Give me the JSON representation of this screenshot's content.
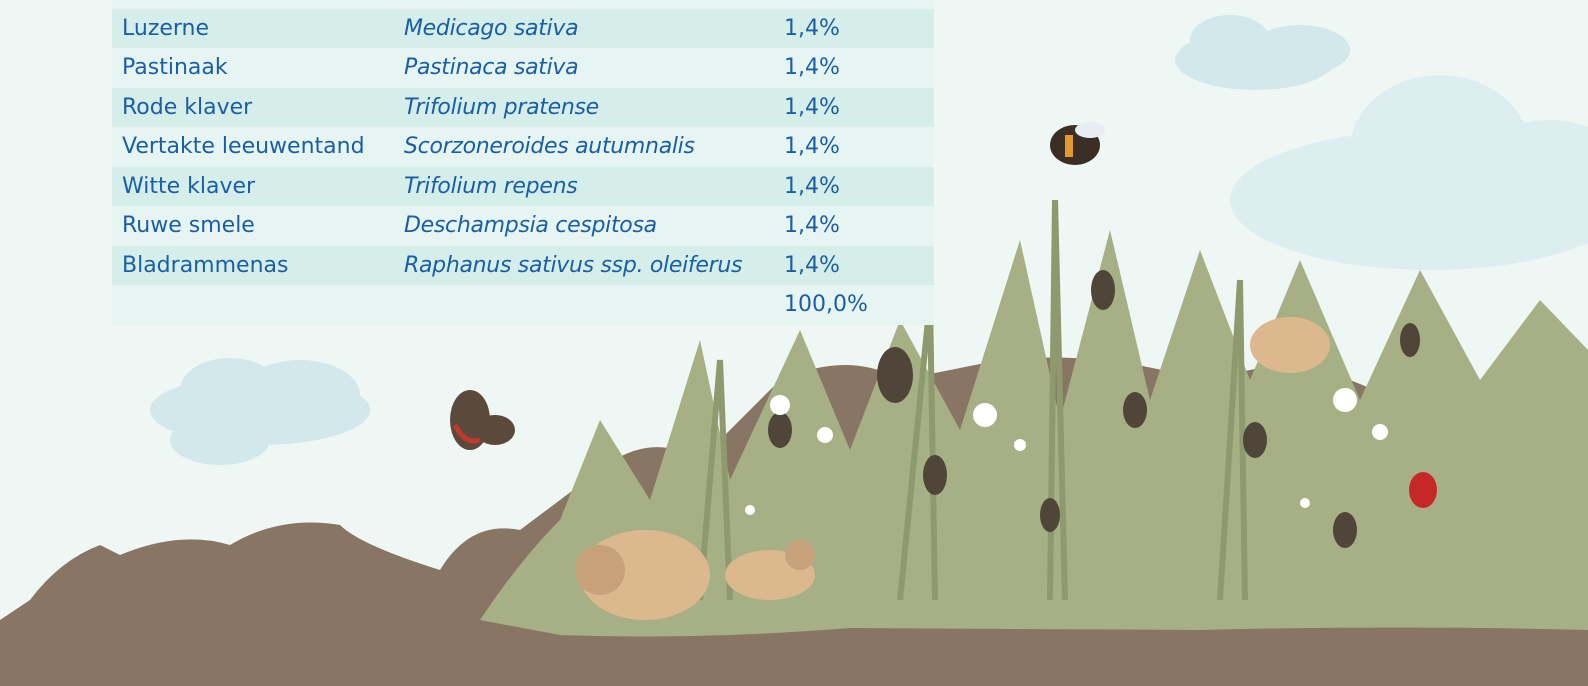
{
  "table": {
    "rows": [
      [
        "Luzerne",
        "Medicago sativa",
        "1,4%"
      ],
      [
        "Pastinaak",
        "Pastinaca sativa",
        "1,4%"
      ],
      [
        "Rode klaver",
        "Trifolium pratense",
        "1,4%"
      ],
      [
        "Vertakte leeuwentand",
        "Scorzoneroides autumnalis",
        "1,4%"
      ],
      [
        "Witte klaver",
        "Trifolium repens",
        "1,4%"
      ],
      [
        "Ruwe smele",
        "Deschampsia cespitosa",
        "1,4%"
      ],
      [
        "Bladrammenas",
        "Raphanus sativus ssp. oleiferus",
        "1,4%"
      ]
    ],
    "total": "100,0%"
  }
}
